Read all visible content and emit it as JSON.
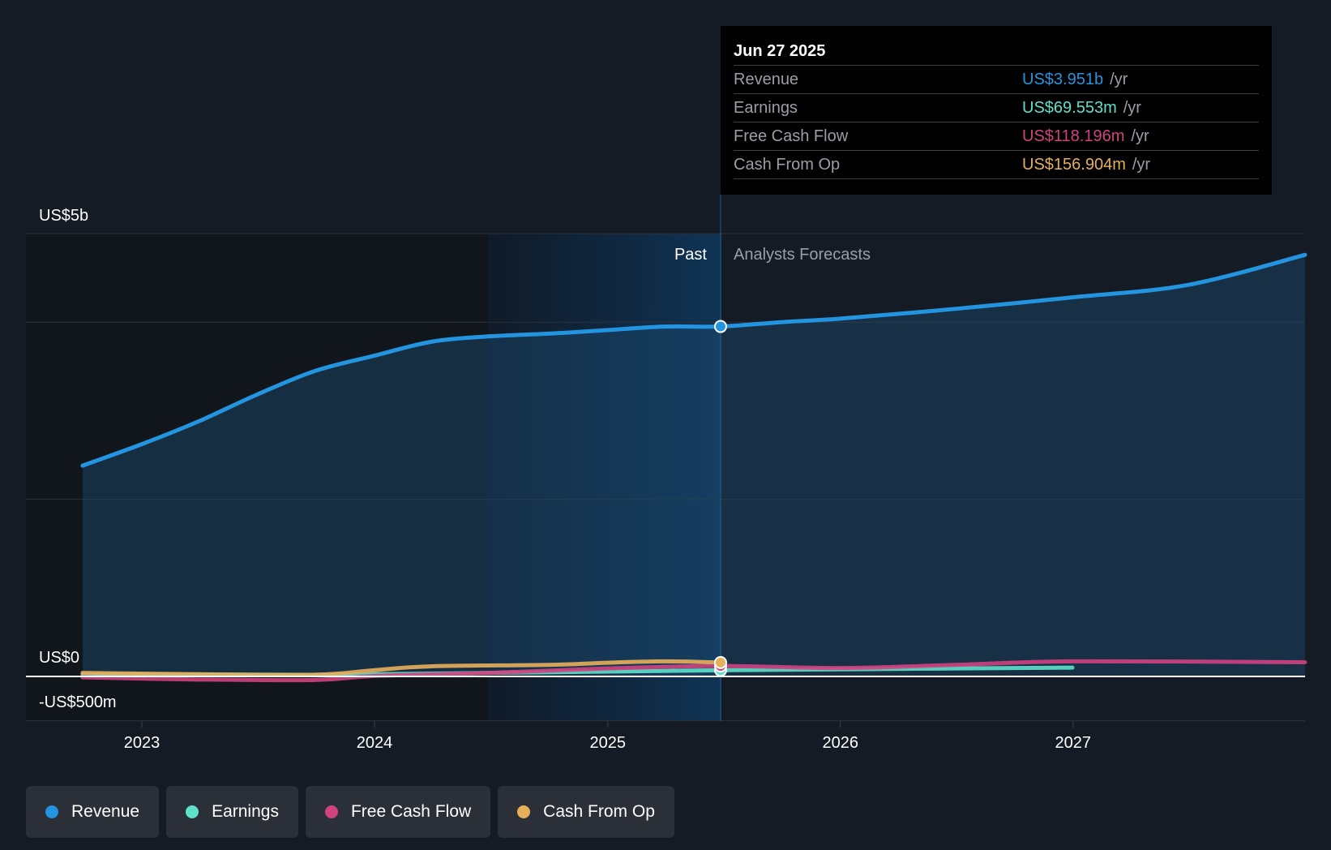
{
  "chart_data": {
    "type": "line",
    "y_axis_labels": [
      "US$5b",
      "US$0",
      "-US$500m"
    ],
    "x_ticks": [
      "2023",
      "2024",
      "2025",
      "2026",
      "2027"
    ],
    "ylim": [
      -500000000,
      5000000000
    ],
    "region_labels": {
      "past": "Past",
      "forecast": "Analysts Forecasts"
    },
    "divider_date": "2025-06-27",
    "series": [
      {
        "name": "Revenue",
        "color": "#2394df",
        "points": [
          [
            "2022-09-30",
            2380000000.0
          ],
          [
            "2022-12-31",
            2620000000.0
          ],
          [
            "2023-03-31",
            2880000000.0
          ],
          [
            "2023-06-30",
            3180000000.0
          ],
          [
            "2023-09-30",
            3450000000.0
          ],
          [
            "2023-12-31",
            3620000000.0
          ],
          [
            "2024-03-31",
            3780000000.0
          ],
          [
            "2024-06-30",
            3840000000.0
          ],
          [
            "2024-09-30",
            3870000000.0
          ],
          [
            "2024-12-31",
            3910000000.0
          ],
          [
            "2025-03-31",
            3950000000.0
          ],
          [
            "2025-06-27",
            3951000000.0
          ],
          [
            "2025-09-30",
            4000000000.0
          ],
          [
            "2025-12-31",
            4040000000.0
          ],
          [
            "2026-06-30",
            4150000000.0
          ],
          [
            "2026-12-31",
            4280000000.0
          ],
          [
            "2027-06-30",
            4420000000.0
          ],
          [
            "2027-12-31",
            4760000000.0
          ]
        ]
      },
      {
        "name": "Earnings",
        "color": "#5ee0c9",
        "points": [
          [
            "2022-09-30",
            20000000.0
          ],
          [
            "2023-03-31",
            22000000.0
          ],
          [
            "2023-09-30",
            18000000.0
          ],
          [
            "2023-12-31",
            25000000.0
          ],
          [
            "2024-06-30",
            40000000.0
          ],
          [
            "2024-12-31",
            55000000.0
          ],
          [
            "2025-06-27",
            69553000.0
          ],
          [
            "2025-12-31",
            80000000.0
          ],
          [
            "2026-06-30",
            90000000.0
          ],
          [
            "2026-12-31",
            100000000.0
          ]
        ]
      },
      {
        "name": "Free Cash Flow",
        "color": "#d0427f",
        "points": [
          [
            "2022-09-30",
            -10000000.0
          ],
          [
            "2023-03-31",
            -35000000.0
          ],
          [
            "2023-09-30",
            -40000000.0
          ],
          [
            "2023-12-31",
            5000000.0
          ],
          [
            "2024-06-30",
            40000000.0
          ],
          [
            "2024-12-31",
            90000000.0
          ],
          [
            "2025-06-27",
            118196000.0
          ],
          [
            "2025-12-31",
            95000000.0
          ],
          [
            "2026-06-30",
            130000000.0
          ],
          [
            "2026-12-31",
            170000000.0
          ],
          [
            "2027-12-31",
            160000000.0
          ]
        ]
      },
      {
        "name": "Cash From Op",
        "color": "#e8af5b",
        "points": [
          [
            "2022-09-30",
            40000000.0
          ],
          [
            "2023-03-31",
            25000000.0
          ],
          [
            "2023-09-30",
            20000000.0
          ],
          [
            "2023-12-31",
            70000000.0
          ],
          [
            "2024-03-31",
            115000000.0
          ],
          [
            "2024-09-30",
            130000000.0
          ],
          [
            "2024-12-31",
            155000000.0
          ],
          [
            "2025-03-31",
            170000000.0
          ],
          [
            "2025-06-27",
            156904000.0
          ]
        ]
      }
    ]
  },
  "tooltip": {
    "date": "Jun 27 2025",
    "rows": [
      {
        "name": "Revenue",
        "value": "US$3.951b",
        "unit": "/yr",
        "color": "#2394df"
      },
      {
        "name": "Earnings",
        "value": "US$69.553m",
        "unit": "/yr",
        "color": "#5ee0c9"
      },
      {
        "name": "Free Cash Flow",
        "value": "US$118.196m",
        "unit": "/yr",
        "color": "#d0427f"
      },
      {
        "name": "Cash From Op",
        "value": "US$156.904m",
        "unit": "/yr",
        "color": "#e8af5b"
      }
    ]
  },
  "legend": [
    {
      "label": "Revenue",
      "color": "#2394df"
    },
    {
      "label": "Earnings",
      "color": "#5ee0c9"
    },
    {
      "label": "Free Cash Flow",
      "color": "#d0427f"
    },
    {
      "label": "Cash From Op",
      "color": "#e8af5b"
    }
  ]
}
